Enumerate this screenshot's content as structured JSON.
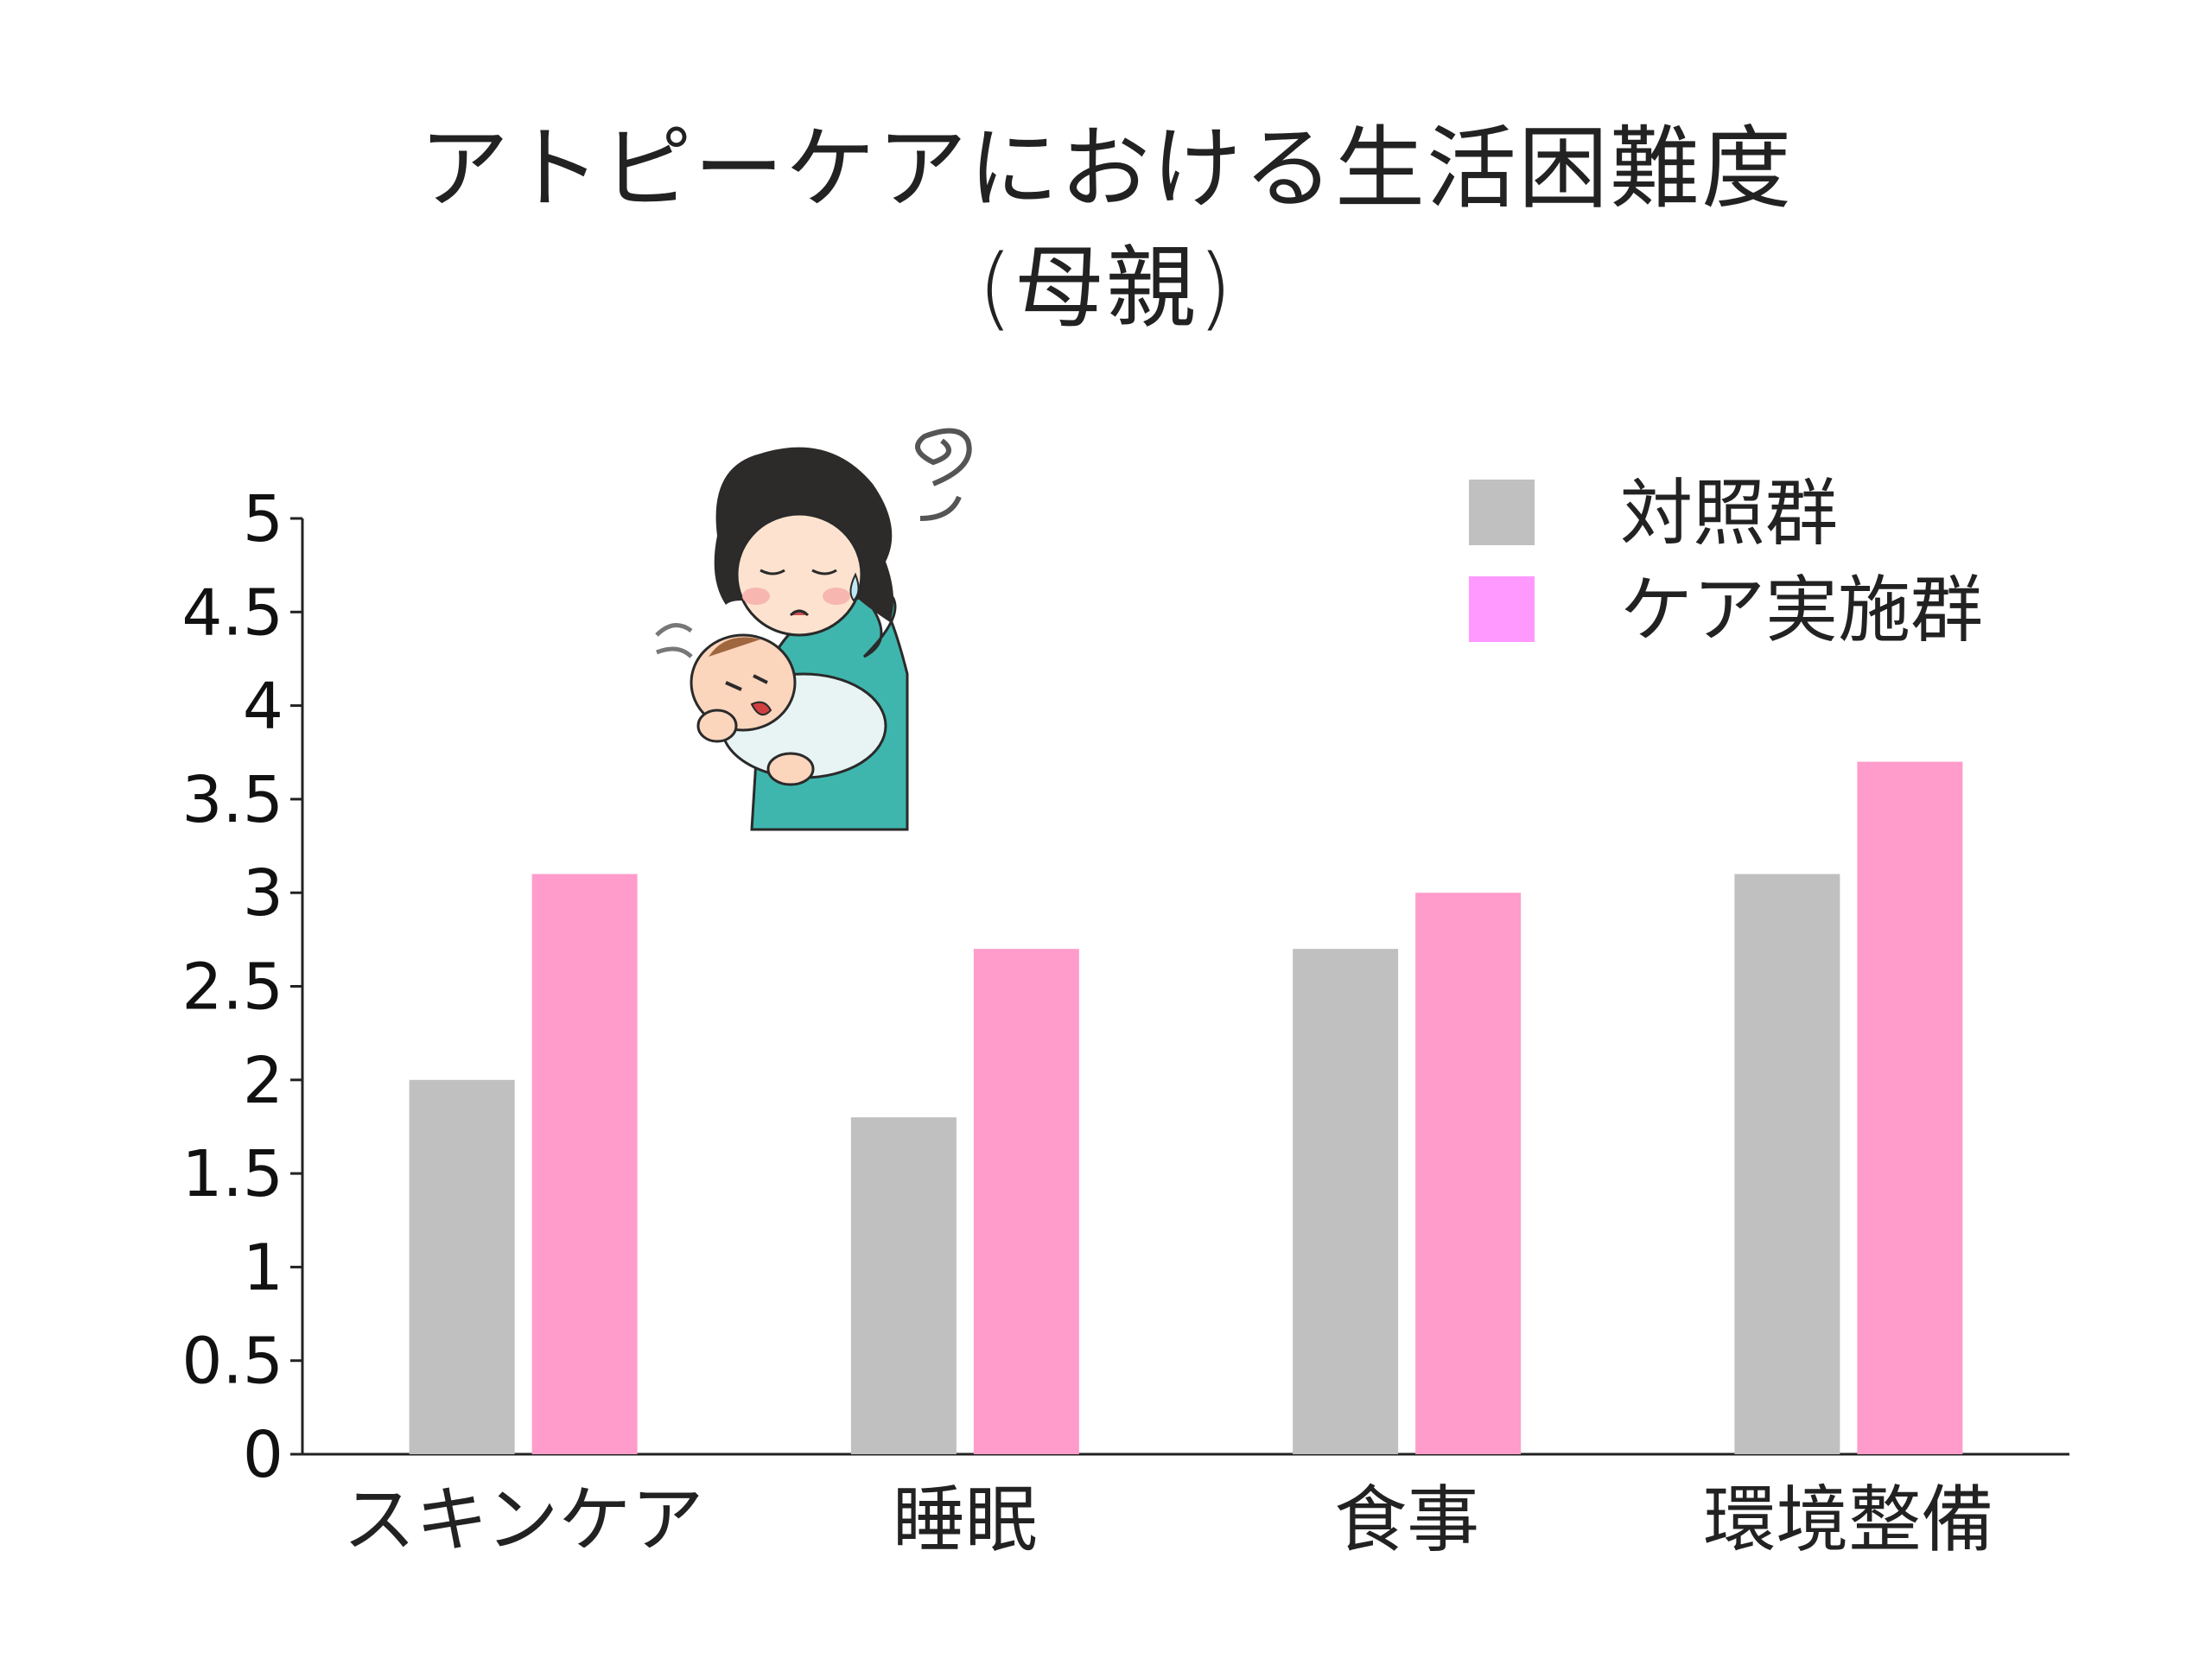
{
  "title_line1": "アトピーケアにおける生活困難度",
  "title_line2": "(母親)",
  "chart_data": {
    "type": "bar",
    "categories": [
      "スキンケア",
      "睡眠",
      "食事",
      "環境整備"
    ],
    "series": [
      {
        "name": "対照群",
        "values": [
          2.0,
          1.8,
          2.7,
          3.1
        ],
        "color": "#c0c0c0"
      },
      {
        "name": "ケア実施群",
        "values": [
          3.1,
          2.7,
          3.0,
          3.7
        ],
        "color": "#ff9ccb"
      }
    ],
    "ylim": [
      0,
      5
    ],
    "yticks": [
      "0",
      "0.5",
      "1",
      "1.5",
      "2",
      "2.5",
      "3",
      "3.5",
      "4",
      "4.5",
      "5"
    ],
    "legend_position": "top-right",
    "legend_colors": [
      "#c0c0c0",
      "#ff99ff"
    ],
    "grid": false
  },
  "illustration": "mother-holding-crying-baby"
}
